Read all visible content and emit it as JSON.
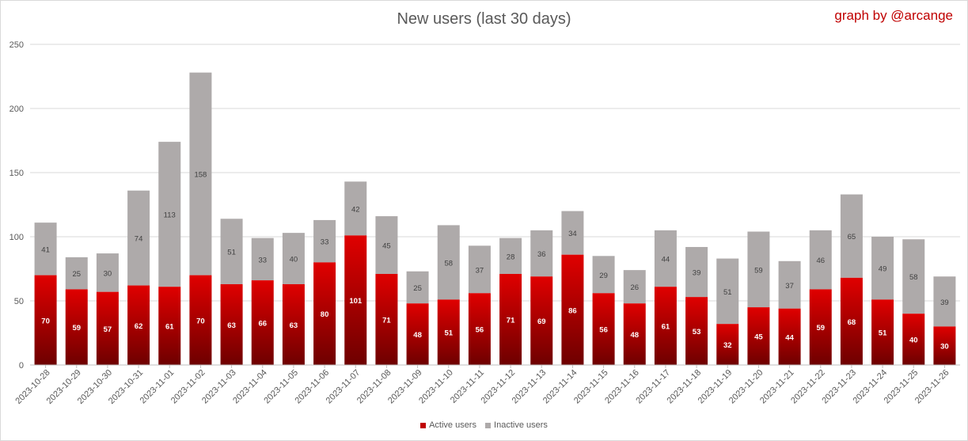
{
  "title": "New users (last 30 days)",
  "credit": "graph by @arcange",
  "chart_data": {
    "type": "bar",
    "stacked": true,
    "categories": [
      "2023-10-28",
      "2023-10-29",
      "2023-10-30",
      "2023-10-31",
      "2023-11-01",
      "2023-11-02",
      "2023-11-03",
      "2023-11-04",
      "2023-11-05",
      "2023-11-06",
      "2023-11-07",
      "2023-11-08",
      "2023-11-09",
      "2023-11-10",
      "2023-11-11",
      "2023-11-12",
      "2023-11-13",
      "2023-11-14",
      "2023-11-15",
      "2023-11-16",
      "2023-11-17",
      "2023-11-18",
      "2023-11-19",
      "2023-11-20",
      "2023-11-21",
      "2023-11-22",
      "2023-11-23",
      "2023-11-24",
      "2023-11-25",
      "2023-11-26"
    ],
    "series": [
      {
        "name": "Active users",
        "color": "#c00000",
        "values": [
          70,
          59,
          57,
          62,
          61,
          70,
          63,
          66,
          63,
          80,
          101,
          71,
          48,
          51,
          56,
          71,
          69,
          86,
          56,
          48,
          61,
          53,
          32,
          45,
          44,
          59,
          68,
          51,
          40,
          30
        ]
      },
      {
        "name": "Inactive users",
        "color": "#aeaaaa",
        "values": [
          41,
          25,
          30,
          74,
          113,
          158,
          51,
          33,
          40,
          33,
          42,
          45,
          25,
          58,
          37,
          28,
          36,
          34,
          29,
          26,
          44,
          39,
          51,
          59,
          37,
          46,
          65,
          49,
          58,
          39
        ]
      }
    ],
    "ylim": [
      0,
      250
    ],
    "yticks": [
      0,
      50,
      100,
      150,
      200,
      250
    ],
    "grid": true,
    "legend_position": "bottom"
  }
}
